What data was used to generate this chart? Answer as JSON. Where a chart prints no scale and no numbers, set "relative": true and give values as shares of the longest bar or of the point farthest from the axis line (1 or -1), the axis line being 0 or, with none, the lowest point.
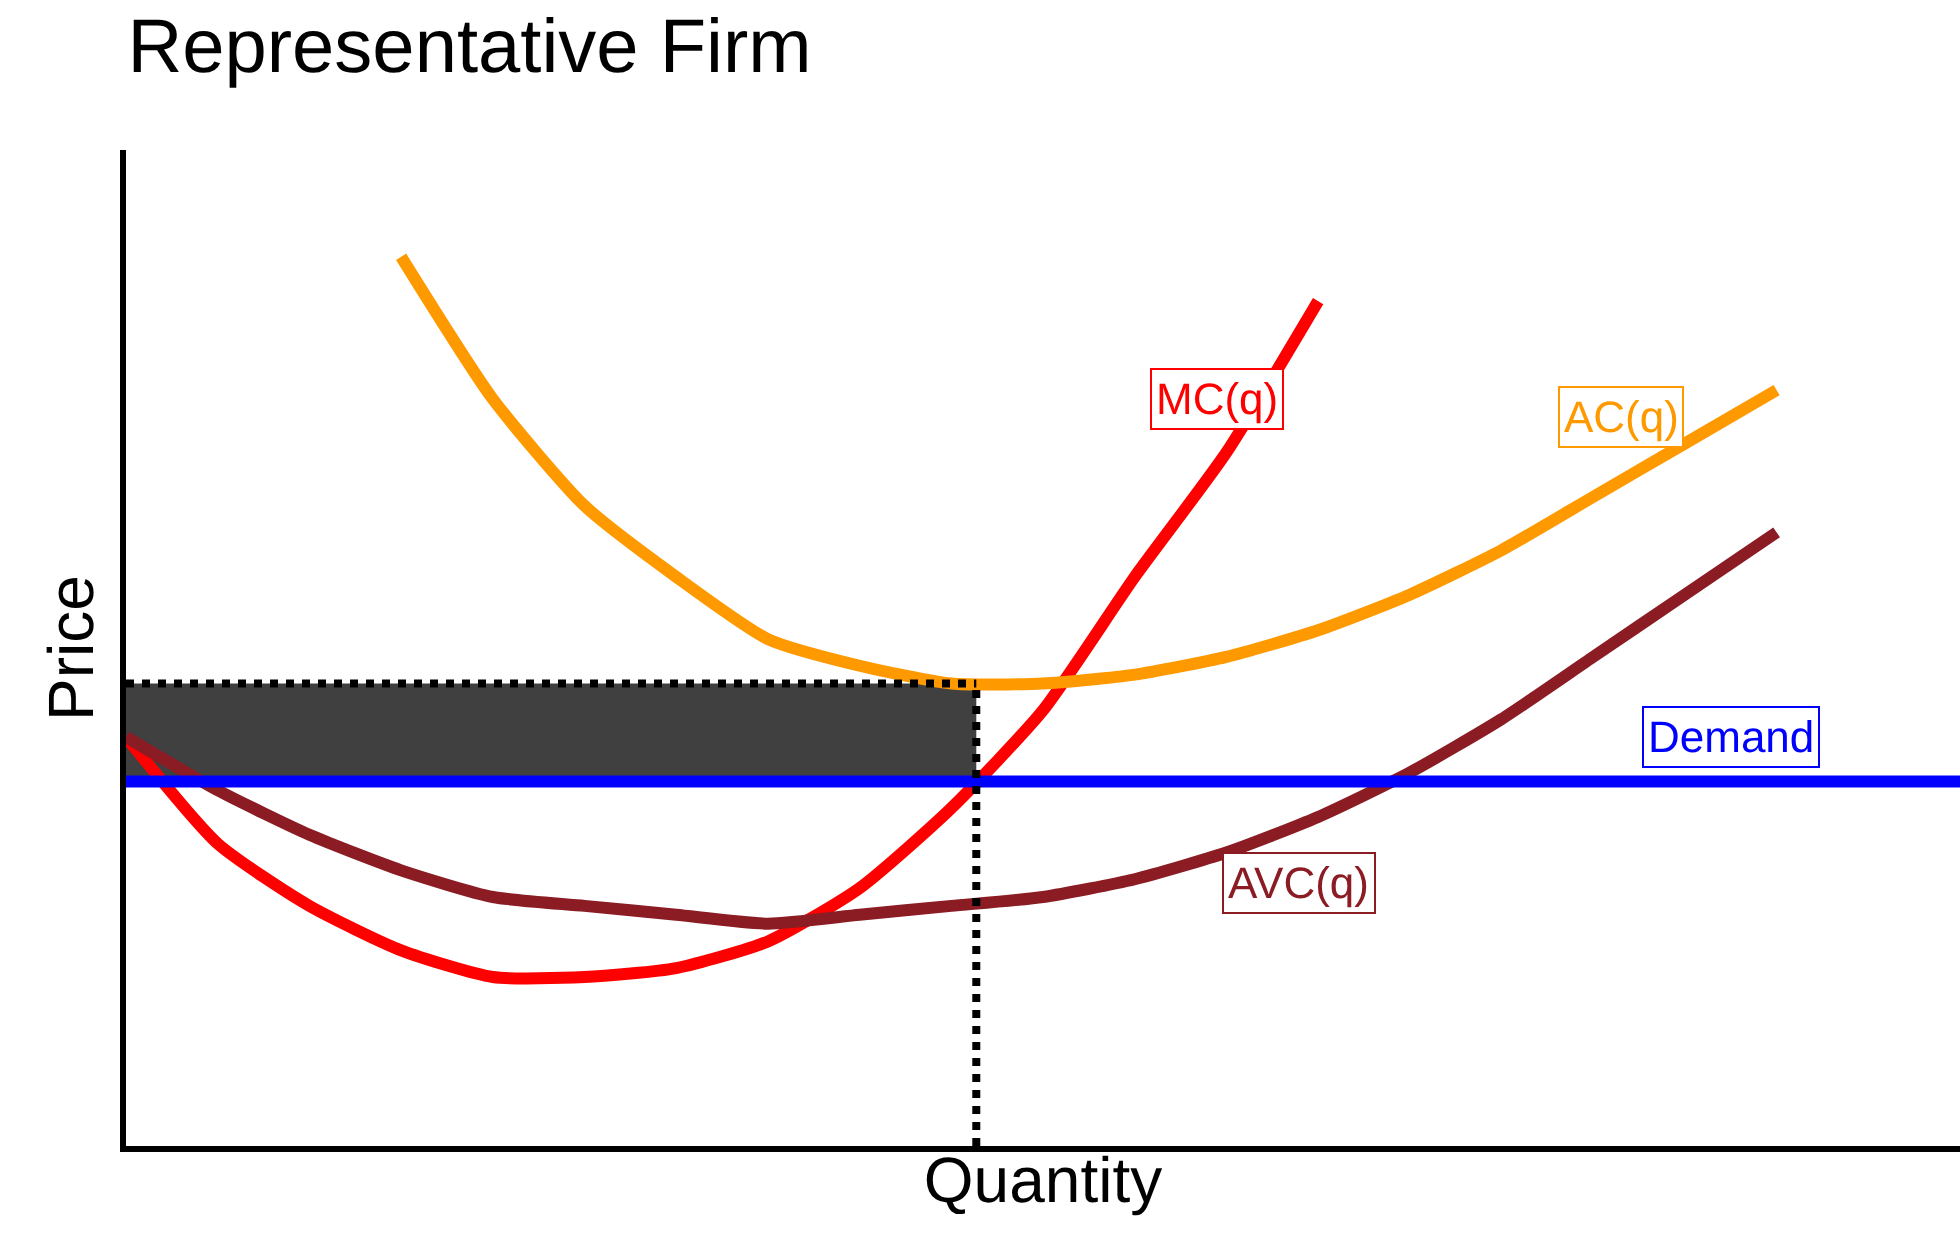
{
  "chart_data": {
    "type": "line",
    "title": "Representative Firm",
    "xlabel": "Quantity",
    "ylabel": "Price",
    "relative": true,
    "categories": [
      null,
      null,
      null,
      null,
      null,
      null,
      null,
      null,
      null,
      null,
      null,
      null,
      null,
      null,
      null,
      null,
      null,
      null,
      null,
      null,
      null
    ],
    "series": [
      {
        "name": "MC(q)",
        "color": "#ff0000",
        "values": [
          0.46,
          0.34,
          0.27,
          0.22,
          0.19,
          0.19,
          0.2,
          0.23,
          0.29,
          0.38,
          0.49,
          0.64,
          0.78,
          0.95,
          null,
          null,
          null,
          null,
          null,
          null,
          null
        ]
      },
      {
        "name": "AC(q)",
        "color": "#ff9900",
        "values": [
          null,
          null,
          null,
          1,
          0.84,
          0.72,
          0.64,
          0.57,
          0.54,
          0.52,
          0.52,
          0.53,
          0.55,
          0.58,
          0.62,
          0.67,
          0.73,
          0.79,
          0.85,
          null,
          null
        ]
      },
      {
        "name": "AVC(q)",
        "color": "#8b1c24",
        "values": [
          0.46,
          0.4,
          0.35,
          0.31,
          0.28,
          0.27,
          0.26,
          0.25,
          0.26,
          0.27,
          0.28,
          0.3,
          0.33,
          0.37,
          0.42,
          0.48,
          0.55,
          0.62,
          0.69,
          null,
          null
        ]
      },
      {
        "name": "Demand",
        "color": "#0000ff",
        "values": [
          0.41,
          0.41,
          0.41,
          0.41,
          0.41,
          0.41,
          0.41,
          0.41,
          0.41,
          0.41,
          0.41,
          0.41,
          0.41,
          0.41,
          0.41,
          0.41,
          0.41,
          0.41,
          0.41,
          0.41,
          0.41
        ]
      }
    ],
    "ref_lines": [
      {
        "axis": "y",
        "value": 0.52,
        "color": "#000000",
        "line_style": "dotted"
      }
    ],
    "bands": [
      {
        "axis": "y",
        "from": 0.41,
        "to": 0.52,
        "color": "#404040"
      }
    ],
    "legend": false,
    "grid": false,
    "marker": "none",
    "line_style": "solid"
  }
}
